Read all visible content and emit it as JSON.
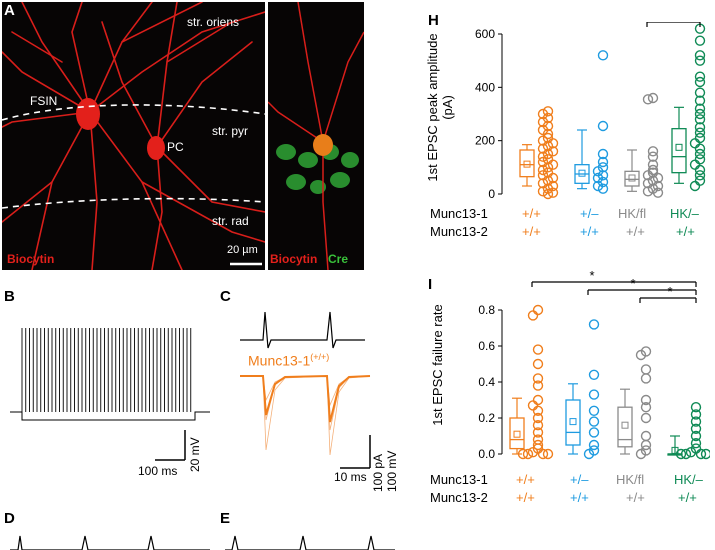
{
  "panels": {
    "A": {
      "label": "A",
      "left_image": {
        "annotations": [
          "str. oriens",
          "str. pyr",
          "str. rad"
        ],
        "cells": [
          "FSIN",
          "PC"
        ],
        "scale": "20 µm",
        "stain": "Biocytin"
      },
      "right_image": {
        "stain1": "Biocytin",
        "stain2": "Cre",
        "colors": {
          "biocytin": "#e3201b",
          "cre": "#39c13a"
        }
      }
    },
    "B": {
      "label": "B",
      "scale_x": "100 ms",
      "scale_y": "20 mV"
    },
    "C": {
      "label": "C",
      "trace_label": "Munc13-1",
      "trace_sup": "(+/+)",
      "scale_x": "10 ms",
      "scale_y1": "100 pA",
      "scale_y2": "100 mV"
    },
    "D": {
      "label": "D"
    },
    "E": {
      "label": "E"
    },
    "H": {
      "label": "H"
    },
    "I": {
      "label": "I"
    }
  },
  "genotype_rows": {
    "row1_label": "Munc13-1",
    "row2_label": "Munc13-2",
    "groups": [
      {
        "m1": "+/+",
        "m2": "+/+",
        "color": "#f07e1c"
      },
      {
        "m1": "+/–",
        "m2": "+/+",
        "color": "#1e9be0"
      },
      {
        "m1": "HK/fl",
        "m2": "+/+",
        "color": "#8a8a8a"
      },
      {
        "m1": "HK/–",
        "m2": "+/+",
        "color": "#0f8a55"
      }
    ]
  },
  "chart_data": [
    {
      "panel": "H",
      "type": "scatter",
      "ylabel": "1st EPSC peak amplitude (pA)",
      "ylim": [
        0,
        600
      ],
      "yticks": [
        "0",
        "200",
        "400",
        "600"
      ],
      "significance": [
        {
          "from": 2,
          "to": 3,
          "label": "*"
        }
      ],
      "groups": [
        {
          "box": {
            "min": 30,
            "q1": 65,
            "median": 110,
            "q3": 165,
            "max": 185,
            "mean": 112
          },
          "points": [
            310,
            300,
            285,
            270,
            255,
            240,
            225,
            210,
            200,
            190,
            180,
            170,
            160,
            150,
            140,
            130,
            120,
            110,
            100,
            90,
            80,
            70,
            60,
            50,
            40,
            30,
            20,
            10,
            5,
            0
          ]
        },
        {
          "box": {
            "min": 20,
            "q1": 40,
            "median": 75,
            "q3": 110,
            "max": 240,
            "mean": 78
          },
          "points": [
            520,
            255,
            150,
            120,
            100,
            85,
            70,
            60,
            45,
            30,
            20
          ]
        },
        {
          "box": {
            "min": 10,
            "q1": 30,
            "median": 55,
            "q3": 85,
            "max": 165,
            "mean": 60
          },
          "points": [
            360,
            355,
            160,
            140,
            110,
            90,
            80,
            70,
            60,
            50,
            40,
            30,
            20,
            10,
            5
          ]
        },
        {
          "box": {
            "min": 40,
            "q1": 80,
            "median": 140,
            "q3": 245,
            "max": 325,
            "mean": 175
          },
          "points": [
            620,
            575,
            520,
            500,
            440,
            420,
            380,
            350,
            320,
            300,
            280,
            250,
            230,
            210,
            190,
            170,
            150,
            130,
            110,
            90,
            70,
            50,
            30
          ]
        }
      ]
    },
    {
      "panel": "I",
      "type": "scatter",
      "ylabel": "1st EPSC failure rate",
      "ylim": [
        0,
        0.8
      ],
      "yticks": [
        "0.0",
        "0.2",
        "0.4",
        "0.6",
        "0.8"
      ],
      "significance": [
        {
          "from": 0,
          "to": 3,
          "label": "*"
        },
        {
          "from": 1,
          "to": 3,
          "label": "*"
        },
        {
          "from": 2,
          "to": 3,
          "label": "*"
        }
      ],
      "groups": [
        {
          "box": {
            "min": 0.0,
            "q1": 0.03,
            "median": 0.08,
            "q3": 0.2,
            "max": 0.31,
            "mean": 0.11
          },
          "points": [
            0.8,
            0.77,
            0.58,
            0.5,
            0.42,
            0.38,
            0.3,
            0.27,
            0.24,
            0.2,
            0.16,
            0.12,
            0.08,
            0.05,
            0.03,
            0.01,
            0,
            0,
            0,
            0
          ]
        },
        {
          "box": {
            "min": 0.0,
            "q1": 0.05,
            "median": 0.12,
            "q3": 0.3,
            "max": 0.39,
            "mean": 0.18
          },
          "points": [
            0.72,
            0.44,
            0.33,
            0.24,
            0.18,
            0.12,
            0.05,
            0.02,
            0
          ]
        },
        {
          "box": {
            "min": 0.0,
            "q1": 0.04,
            "median": 0.08,
            "q3": 0.26,
            "max": 0.36,
            "mean": 0.16
          },
          "points": [
            0.57,
            0.55,
            0.47,
            0.42,
            0.3,
            0.26,
            0.2,
            0.1,
            0.05,
            0.02,
            0
          ]
        },
        {
          "box": {
            "min": 0.0,
            "q1": 0.0,
            "median": 0.0,
            "q3": 0.0,
            "max": 0.1,
            "mean": 0.02
          },
          "points": [
            0.26,
            0.22,
            0.18,
            0.14,
            0.1,
            0.06,
            0.03,
            0.01,
            0,
            0,
            0,
            0
          ]
        }
      ]
    }
  ]
}
